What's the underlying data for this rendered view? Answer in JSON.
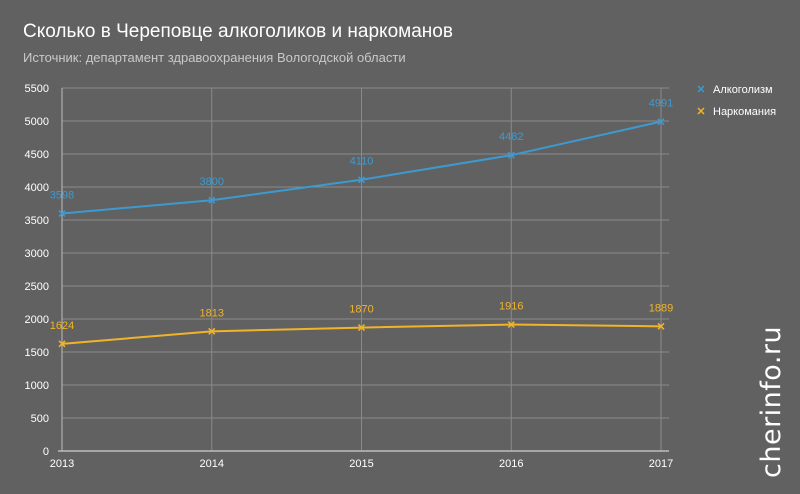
{
  "title": "Сколько в Череповце алкоголиков и наркоманов",
  "subtitle": "Источник: департамент здравоохранения Вологодской области",
  "watermark": "cherinfo.ru",
  "colors": {
    "background": "#616161",
    "grid": "#8a8a8a",
    "axis": "#bdbdbd",
    "alcohol": "#3d9ad1",
    "drugs": "#f0b429"
  },
  "chart_data": {
    "type": "line",
    "title": "Сколько в Череповце алкоголиков и наркоманов",
    "subtitle": "Источник: департамент здравоохранения Вологодской области",
    "categories": [
      "2013",
      "2014",
      "2015",
      "2016",
      "2017"
    ],
    "yticks": [
      0,
      500,
      1000,
      1500,
      2000,
      2500,
      3000,
      3500,
      4000,
      4500,
      5000,
      5500
    ],
    "ylim": [
      0,
      5500
    ],
    "grid": true,
    "legend": "top-right",
    "series": [
      {
        "name": "Алкоголизм",
        "color": "#3d9ad1",
        "values": [
          3598,
          3800,
          4110,
          4482,
          4991
        ],
        "labels": [
          "3598",
          "3800",
          "4110",
          "4482",
          "4991"
        ]
      },
      {
        "name": "Наркомания",
        "color": "#f0b429",
        "values": [
          1624,
          1813,
          1870,
          1916,
          1889
        ],
        "labels": [
          "1624",
          "1813",
          "1870",
          "1916",
          "1889"
        ]
      }
    ]
  }
}
